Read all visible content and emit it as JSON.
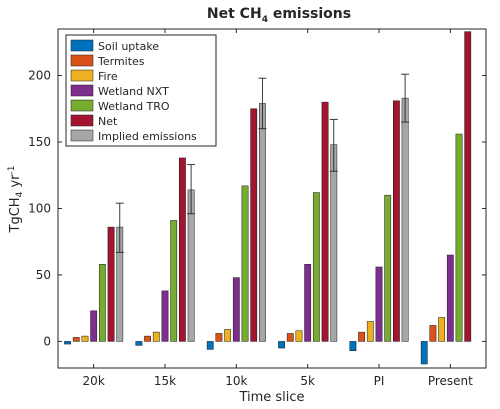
{
  "chart_data": {
    "type": "bar",
    "title": {
      "main": "Net CH",
      "sub": "4",
      "rest": " emissions"
    },
    "xlabel": "Time slice",
    "ylabel": {
      "main": "TgCH",
      "sub": "4",
      "mid": " yr",
      "sup": "-1"
    },
    "ylim": [
      -20,
      235
    ],
    "yticks": [
      "0",
      "50",
      "100",
      "150",
      "200"
    ],
    "categories": [
      "20k",
      "15k",
      "10k",
      "5k",
      "PI",
      "Present"
    ],
    "grid": false,
    "legend_position": "top-left",
    "series": [
      {
        "name": "Soil uptake",
        "color": "#0072BD",
        "values": [
          -2,
          -3,
          -6,
          -5,
          -7,
          -17
        ]
      },
      {
        "name": "Termites",
        "color": "#D95319",
        "values": [
          3,
          4,
          6,
          6,
          7,
          12
        ]
      },
      {
        "name": "Fire",
        "color": "#EDB120",
        "values": [
          4,
          7,
          9,
          8,
          15,
          18
        ]
      },
      {
        "name": "Wetland NXT",
        "color": "#7E2F8E",
        "values": [
          23,
          38,
          48,
          58,
          56,
          65
        ]
      },
      {
        "name": "Wetland TRO",
        "color": "#77AC30",
        "values": [
          58,
          91,
          117,
          112,
          110,
          156
        ]
      },
      {
        "name": "Net",
        "color": "#A2142F",
        "values": [
          86,
          138,
          175,
          180,
          181,
          233
        ]
      },
      {
        "name": "Implied emissions",
        "color": "#A6A6A6",
        "values": [
          86,
          114,
          179,
          148,
          183,
          null
        ],
        "error": [
          [
            67,
            104
          ],
          [
            96,
            133
          ],
          [
            160,
            198
          ],
          [
            128,
            167
          ],
          [
            165,
            201
          ],
          null
        ]
      }
    ]
  }
}
